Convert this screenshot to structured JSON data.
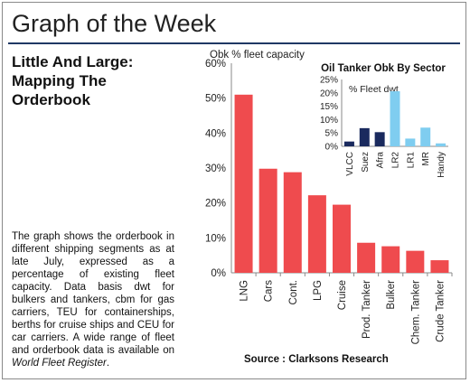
{
  "page_title": "Graph of the Week",
  "sub_heading": "Little And Large: Mapping The Orderbook",
  "body_text": "The graph shows the orderbook in different shipping segments as at late July, expressed as a percentage of existing fleet capacity. Data basis dwt for bulkers and tankers, cbm for gas carriers, TEU for containerships, berths for cruise ships and CEU for car carriers. A wide range of fleet and orderbook data is available on ",
  "body_text_link": "World Fleet Register",
  "body_text_end": ".",
  "source": "Source : Clarksons Research",
  "chart_data": [
    {
      "type": "bar",
      "ylabel": "Obk % fleet capacity",
      "ylim": [
        0,
        60
      ],
      "yticks": [
        "0%",
        "10%",
        "20%",
        "30%",
        "40%",
        "50%",
        "60%"
      ],
      "categories": [
        "LNG",
        "Cars",
        "Cont.",
        "LPG",
        "Cruise",
        "Prod. Tanker",
        "Bulker",
        "Chem. Tanker",
        "Crude Tanker"
      ],
      "values": [
        51,
        29.8,
        28.8,
        22.2,
        19.5,
        8.6,
        7.6,
        6.3,
        3.6
      ],
      "color": "#ef4b4e",
      "grid": false
    },
    {
      "type": "bar",
      "title": "Oil Tanker Obk By Sector",
      "ylabel": "% Fleet dwt",
      "ylim": [
        0,
        25
      ],
      "yticks": [
        "0%",
        "5%",
        "10%",
        "15%",
        "20%",
        "25%"
      ],
      "categories": [
        "VLCC",
        "Suez",
        "Afra",
        "LR2",
        "LR1",
        "MR",
        "Handy"
      ],
      "values": [
        1.8,
        6.8,
        5.3,
        20.6,
        2.9,
        7.0,
        1.1
      ],
      "colors": [
        "#1a2a5e",
        "#1a2a5e",
        "#1a2a5e",
        "#7fcdf0",
        "#7fcdf0",
        "#7fcdf0",
        "#7fcdf0"
      ],
      "grid": false
    }
  ]
}
